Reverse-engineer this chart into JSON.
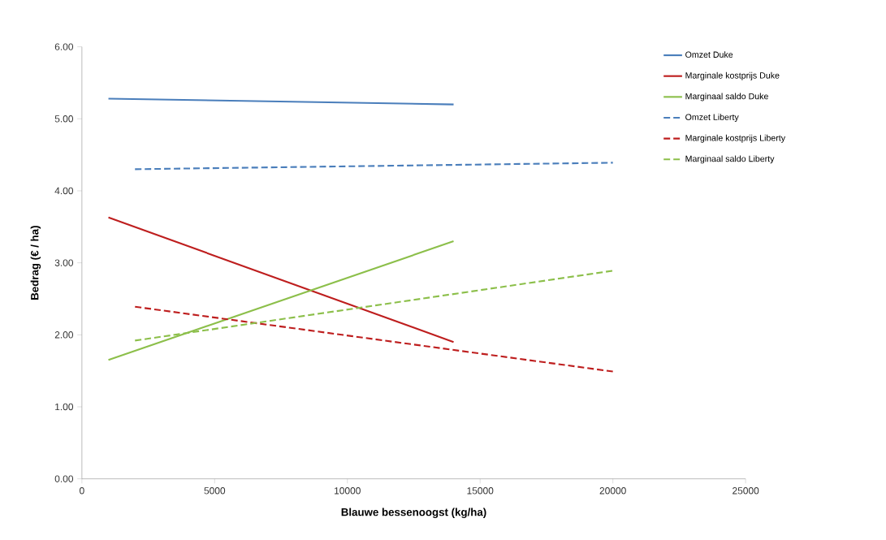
{
  "chart_data": {
    "type": "line",
    "xlabel": "Blauwe bessenoogst (kg/ha)",
    "ylabel": "Bedrag (€ / ha)",
    "xlim": [
      0,
      25000
    ],
    "xticks": [
      0,
      5000,
      10000,
      15000,
      20000,
      25000
    ],
    "ylim": [
      0,
      6
    ],
    "yticks": [
      {
        "value": 0,
        "label": "0.00"
      },
      {
        "value": 1,
        "label": "1.00"
      },
      {
        "value": 2,
        "label": "2.00"
      },
      {
        "value": 3,
        "label": "3.00"
      },
      {
        "value": 4,
        "label": "4.00"
      },
      {
        "value": 5,
        "label": "5.00"
      },
      {
        "value": 6,
        "label": "6.00"
      }
    ],
    "grid": false,
    "legend": "right",
    "series": [
      {
        "name": "Omzet Duke",
        "color": "#4a7ebb",
        "line_style": "solid",
        "x": [
          1000,
          14000
        ],
        "values": [
          5.28,
          5.2
        ]
      },
      {
        "name": "Marginale kostprijs Duke",
        "color": "#be1e1e",
        "line_style": "solid",
        "x": [
          1000,
          14000
        ],
        "values": [
          3.63,
          1.9
        ]
      },
      {
        "name": "Marginaal saldo Duke",
        "color": "#8cbf4a",
        "line_style": "solid",
        "x": [
          1000,
          14000
        ],
        "values": [
          1.65,
          3.3
        ]
      },
      {
        "name": "Omzet Liberty",
        "color": "#4a7ebb",
        "line_style": "dashed",
        "x": [
          2000,
          20000
        ],
        "values": [
          4.3,
          4.39
        ]
      },
      {
        "name": "Marginale kostprijs Liberty",
        "color": "#be1e1e",
        "line_style": "dashed",
        "x": [
          2000,
          20000
        ],
        "values": [
          2.39,
          1.49
        ]
      },
      {
        "name": "Marginaal saldo Liberty",
        "color": "#8cbf4a",
        "line_style": "dashed",
        "x": [
          2000,
          20000
        ],
        "values": [
          1.92,
          2.89
        ]
      }
    ]
  }
}
